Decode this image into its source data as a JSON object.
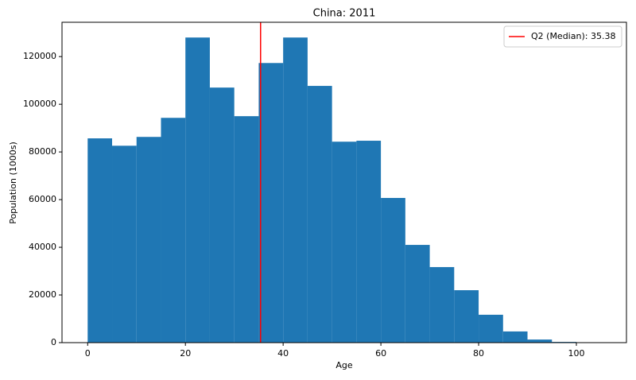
{
  "chart_data": {
    "type": "histogram",
    "title": "China: 2011",
    "xlabel": "Age",
    "ylabel": "Population (1000s)",
    "bins": [
      0,
      5,
      10,
      15,
      20,
      25,
      30,
      35,
      40,
      45,
      50,
      55,
      60,
      65,
      70,
      75,
      80,
      85,
      90,
      95,
      100,
      105
    ],
    "values": [
      85700,
      82600,
      86300,
      94300,
      128000,
      107000,
      95000,
      117300,
      128000,
      107700,
      84300,
      84700,
      60700,
      41000,
      31700,
      22000,
      11700,
      4700,
      1300,
      300,
      30
    ],
    "color": "#1f77b4",
    "lines": [
      {
        "x": 35.38,
        "color": "#ff0000",
        "label": "Q2 (Median): 35.38"
      }
    ],
    "legend": "upper right",
    "xlim": [
      -5.25,
      110.25
    ],
    "xticks": [
      0,
      20,
      40,
      60,
      80,
      100
    ],
    "ylim": [
      0,
      134400
    ],
    "yticks": [
      0,
      20000,
      40000,
      60000,
      80000,
      100000,
      120000
    ],
    "grid": false
  }
}
